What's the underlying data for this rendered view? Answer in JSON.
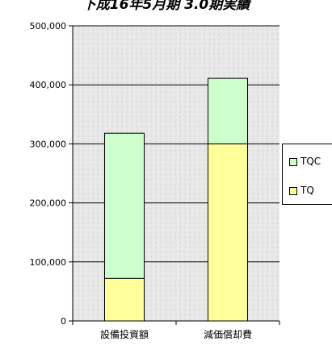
{
  "title": "下成16年5月期 3.0期実績",
  "chart_data": {
    "type": "bar",
    "stacked": true,
    "categories": [
      "設備投資額",
      "減価償却費"
    ],
    "series": [
      {
        "name": "TQ",
        "values": [
          72000,
          300000
        ],
        "color": "#ffff99"
      },
      {
        "name": "TQC",
        "values": [
          246000,
          111000
        ],
        "color": "#ccffcc"
      }
    ],
    "ylim": [
      0,
      500000
    ],
    "yticks": [
      "0",
      "100,000",
      "200,000",
      "300,000",
      "400,000",
      "500,000"
    ],
    "ytick_values": [
      0,
      100000,
      200000,
      300000,
      400000,
      500000
    ],
    "grid": true,
    "legend_position": "right",
    "legend_order": [
      "TQC",
      "TQ"
    ]
  }
}
